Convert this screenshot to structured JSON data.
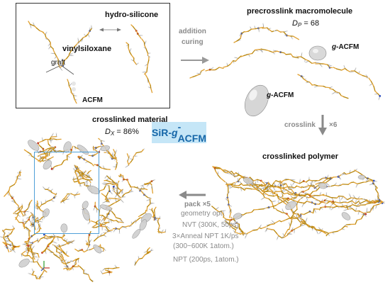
{
  "labels": {
    "hydro_silicone": "hydro-silicone",
    "vinylsiloxane": "vinylsiloxane",
    "graft": "graft",
    "acfm": "ACFM",
    "addition_line1": "addition",
    "addition_line2": "curing",
    "precrosslink_title": "precrosslink macromolecule",
    "dp_symbol": "D",
    "dp_sub": "P",
    "dp_value": "= 68",
    "g_acfm_prefix": "g",
    "g_acfm_suffix": "-ACFM",
    "crosslink": "crosslink",
    "crosslink_times": "×6",
    "crosslinked_polymer": "crosslinked polymer",
    "crosslinked_material": "crosslinked material",
    "dx_symbol": "D",
    "dx_sub": "X",
    "dx_value": "= 86%",
    "badge_prefix": "SiR-",
    "badge_g": "g",
    "badge_suffix": "-ACFM",
    "pack": "pack ×5",
    "steps": [
      "geometry opt.",
      "NVT (300K, 50ps)",
      "3×Anneal NPT 1K/ps",
      "(300~600K 1atom.)",
      "NPT (200ps, 1atom.)"
    ]
  },
  "colors": {
    "badge_bg": "#c5e6f7",
    "badge_text": "#1566a8",
    "cell_border": "#4f9fd8",
    "arrow_gray": "#8a8a8a",
    "chain_orange": "#e0a030"
  }
}
